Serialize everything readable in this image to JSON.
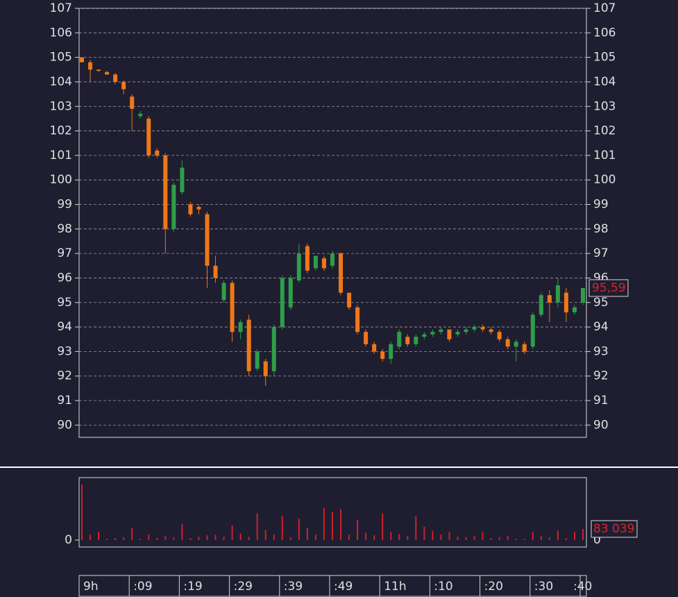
{
  "chart_data": [
    {
      "type": "candlestick",
      "categories": [
        "9h",
        null,
        null,
        null,
        null,
        null,
        ":09",
        null,
        null,
        null,
        null,
        null,
        ":19",
        null,
        null,
        null,
        null,
        null,
        ":29",
        null,
        null,
        null,
        null,
        null,
        ":39",
        null,
        null,
        null,
        null,
        null,
        ":49",
        null,
        null,
        null,
        null,
        null,
        "11h",
        null,
        null,
        null,
        null,
        null,
        ":10",
        null,
        null,
        null,
        null,
        null,
        ":20",
        null,
        null,
        null,
        null,
        null,
        ":30",
        null,
        null,
        null,
        null,
        null,
        ":40"
      ],
      "open": [
        105.0,
        104.8,
        104.5,
        104.4,
        104.3,
        104.0,
        103.4,
        102.6,
        102.5,
        101.2,
        101.0,
        98.0,
        99.5,
        99.0,
        98.9,
        98.6,
        96.5,
        95.1,
        95.8,
        93.8,
        94.3,
        92.3,
        92.6,
        92.2,
        94.0,
        94.8,
        95.9,
        97.3,
        96.4,
        96.8,
        96.5,
        97.0,
        95.4,
        94.8,
        93.8,
        93.3,
        93.0,
        92.7,
        93.2,
        93.6,
        93.3,
        93.6,
        93.7,
        93.8,
        93.9,
        93.7,
        93.8,
        93.9,
        94.0,
        93.9,
        93.8,
        93.5,
        93.2,
        93.3,
        93.2,
        94.5,
        95.3,
        95.0,
        95.4,
        94.6,
        95.0
      ],
      "high": [
        105.0,
        104.9,
        104.5,
        104.45,
        104.35,
        104.05,
        103.5,
        102.8,
        102.6,
        101.3,
        101.1,
        99.9,
        100.8,
        99.1,
        99.0,
        98.7,
        96.9,
        95.9,
        95.9,
        94.3,
        94.5,
        93.1,
        92.7,
        94.1,
        96.1,
        96.1,
        97.4,
        97.4,
        96.9,
        96.9,
        97.1,
        97.05,
        95.4,
        94.9,
        93.9,
        93.4,
        93.1,
        93.4,
        93.9,
        93.7,
        93.7,
        93.8,
        93.9,
        94.0,
        93.9,
        93.9,
        94.0,
        94.1,
        94.1,
        94.0,
        93.9,
        93.6,
        93.5,
        93.4,
        94.6,
        95.4,
        95.5,
        96.0,
        95.6,
        94.9,
        95.6
      ],
      "low": [
        104.8,
        104.0,
        104.4,
        104.3,
        103.9,
        103.5,
        102.0,
        102.5,
        100.9,
        100.9,
        97.0,
        97.9,
        99.4,
        98.5,
        98.6,
        95.6,
        95.8,
        95.0,
        93.4,
        93.5,
        92.0,
        92.2,
        91.6,
        92.0,
        93.9,
        94.7,
        95.8,
        96.2,
        96.3,
        96.3,
        96.4,
        95.3,
        94.7,
        93.7,
        93.2,
        92.9,
        92.6,
        92.5,
        93.1,
        93.2,
        93.2,
        93.5,
        93.6,
        93.7,
        93.4,
        93.6,
        93.7,
        93.8,
        93.8,
        93.7,
        93.4,
        93.1,
        92.6,
        92.9,
        93.1,
        94.4,
        94.2,
        94.8,
        94.2,
        94.5,
        94.9
      ],
      "close": [
        104.8,
        104.5,
        104.45,
        104.3,
        104.0,
        103.7,
        102.9,
        102.7,
        101.0,
        101.0,
        98.0,
        99.8,
        100.5,
        98.6,
        98.8,
        96.5,
        96.0,
        95.8,
        93.8,
        94.2,
        92.2,
        93.0,
        92.0,
        94.0,
        96.0,
        96.0,
        97.0,
        96.3,
        96.9,
        96.4,
        97.0,
        95.4,
        94.8,
        93.8,
        93.3,
        93.0,
        92.7,
        93.3,
        93.8,
        93.3,
        93.6,
        93.7,
        93.8,
        93.9,
        93.5,
        93.8,
        93.9,
        94.0,
        93.9,
        93.8,
        93.5,
        93.2,
        93.4,
        93.0,
        94.5,
        95.3,
        95.0,
        95.7,
        94.6,
        94.8,
        95.59
      ],
      "up_color": "#2e9e4a",
      "down_color": "#f07818",
      "ylim": [
        89.5,
        107
      ],
      "yticks": [
        90,
        91,
        92,
        93,
        94,
        95,
        96,
        97,
        98,
        99,
        100,
        101,
        102,
        103,
        104,
        105,
        106,
        107
      ],
      "grid": true,
      "last_label": {
        "value": 95.59,
        "label": "95,59"
      }
    },
    {
      "type": "bar",
      "color": "#d0202a",
      "values": [
        415000,
        40000,
        60000,
        10000,
        15000,
        20000,
        90000,
        10000,
        40000,
        15000,
        30000,
        20000,
        120000,
        15000,
        25000,
        35000,
        40000,
        25000,
        110000,
        50000,
        25000,
        200000,
        75000,
        40000,
        180000,
        20000,
        160000,
        90000,
        40000,
        240000,
        210000,
        230000,
        40000,
        150000,
        55000,
        35000,
        200000,
        60000,
        45000,
        30000,
        180000,
        100000,
        70000,
        40000,
        60000,
        25000,
        20000,
        30000,
        60000,
        15000,
        20000,
        30000,
        10000,
        10000,
        60000,
        30000,
        20000,
        70000,
        15000,
        60000,
        83039
      ],
      "ylim": [
        0,
        456000
      ],
      "yticks": [
        0
      ],
      "last_label": {
        "value": 83039,
        "label": "83 039"
      }
    }
  ]
}
